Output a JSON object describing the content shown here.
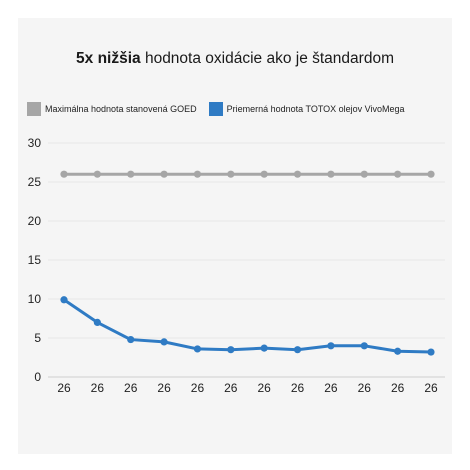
{
  "title": {
    "bold": "5x nižšia",
    "rest": " hodnota oxidácie ako je štandardom"
  },
  "colors": {
    "background": "#f5f5f5",
    "grid": "#e6e6e6"
  },
  "chart_data": {
    "type": "line",
    "title": "5x nižšia hodnota oxidácie ako je štandardom",
    "categories": [
      "26",
      "26",
      "26",
      "26",
      "26",
      "26",
      "26",
      "26",
      "26",
      "26",
      "26",
      "26"
    ],
    "ylim": [
      0,
      30
    ],
    "yticks": [
      0,
      5,
      10,
      15,
      20,
      25,
      30
    ],
    "grid": true,
    "legend_position": "top",
    "series": [
      {
        "name": "Maximálna hodnota stanovená GOED",
        "color": "#a6a6a6",
        "values": [
          26,
          26,
          26,
          26,
          26,
          26,
          26,
          26,
          26,
          26,
          26,
          26
        ]
      },
      {
        "name": "Priemerná hodnota TOTOX olejov VivoMega",
        "color": "#2f7bc4",
        "values": [
          9.9,
          7.0,
          4.8,
          4.5,
          3.6,
          3.5,
          3.7,
          3.5,
          4.0,
          4.0,
          3.3,
          3.2
        ]
      }
    ]
  }
}
